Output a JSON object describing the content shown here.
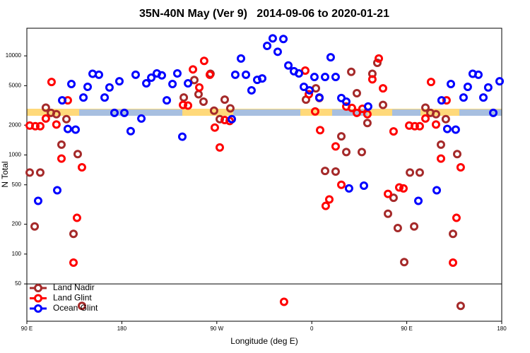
{
  "chart_data": {
    "type": "scatter",
    "title": "35N-40N May (Ver 9)   2014-09-06 to 2020-01-21",
    "xlabel": "Longitude (deg E)",
    "ylabel": "N Total",
    "xlim": [
      90,
      540
    ],
    "ylim": [
      21,
      19000
    ],
    "ylog": true,
    "legend": "lower left",
    "xticks": [
      {
        "value": 90,
        "label": "90 E"
      },
      180,
      {
        "value": 270,
        "label": "90 W"
      },
      {
        "value": 360,
        "label": "0"
      },
      {
        "value": 450,
        "label": "90 E"
      },
      {
        "value": 540,
        "label": "180"
      }
    ],
    "yticks": [
      50,
      100,
      200,
      500,
      1000,
      2000,
      5000,
      10000
    ],
    "series": [
      {
        "name": "Land Nadir",
        "color": "#a52a2a",
        "x": [
          92.7,
          97.4,
          102.7,
          108,
          112.8,
          118,
          122.8,
          127.5,
          134.2,
          138.2,
          142.2,
          238.7,
          248.7,
          252.7,
          257.4,
          267.4,
          277.5,
          282.8,
          272.8,
          264,
          354.5,
          363.9,
          367.2,
          372.6,
          382.6,
          388,
          392.7,
          397.4,
          402.7,
          407.4,
          412.7,
          417.4,
          422.1,
          427.5,
          432.2,
          437.5,
          441.5,
          447.6,
          453,
          457,
          462.3,
          467.7,
          472.4,
          477.7,
          482.4,
          487,
          493.8,
          497.8,
          501.1
        ],
        "values": [
          665,
          190,
          665,
          3000,
          2660,
          2580,
          1270,
          2300,
          160,
          1020,
          30,
          3800,
          5700,
          4100,
          3450,
          2800,
          3620,
          2950,
          2300,
          6600,
          3620,
          4700,
          3750,
          690,
          680,
          1540,
          1070,
          6900,
          4200,
          1070,
          2100,
          6600,
          8500,
          3200,
          255,
          370,
          183,
          83,
          665,
          190,
          665,
          3000,
          2660,
          2580,
          1270,
          2300,
          160,
          1020,
          30
        ]
      },
      {
        "name": "Land Glint",
        "color": "#ff0000",
        "x": [
          92.7,
          98,
          102.7,
          108,
          113.4,
          118,
          122.8,
          128.8,
          134.2,
          137.5,
          142.2,
          238,
          242.7,
          247.4,
          253.4,
          258,
          263.4,
          268.1,
          272.8,
          277.5,
          282.2,
          333.7,
          353.8,
          357.2,
          363.2,
          367.9,
          373.2,
          376.6,
          382.6,
          388,
          392.7,
          398,
          402.7,
          408,
          412.7,
          417.4,
          423.5,
          427.5,
          432.2,
          437.5,
          442.9,
          446.9,
          452.3,
          457.6,
          462.3,
          467.7,
          473,
          477.7,
          482.4,
          487.7,
          493.8,
          497.1,
          501.1
        ],
        "values": [
          1980,
          1950,
          1950,
          2330,
          5450,
          2030,
          920,
          3560,
          82,
          232,
          750,
          3200,
          3150,
          7300,
          4800,
          8900,
          6450,
          1890,
          1190,
          2250,
          2200,
          33,
          7100,
          4100,
          2750,
          1780,
          306,
          356,
          1220,
          500,
          3080,
          2980,
          2660,
          2920,
          2580,
          5800,
          9400,
          4700,
          405,
          1730,
          470,
          460,
          1980,
          1950,
          1950,
          2330,
          5450,
          2030,
          920,
          3560,
          82,
          232,
          750
        ]
      },
      {
        "name": "Ocean Glint",
        "color": "#0000ff",
        "x": [
          100.7,
          118.8,
          123.5,
          128.8,
          132.2,
          136.2,
          143.6,
          147.6,
          152.3,
          158.3,
          163.7,
          168.3,
          173,
          177.7,
          182.4,
          188.4,
          193.1,
          198.5,
          203.2,
          207.9,
          213.2,
          217.9,
          222.6,
          228,
          232.6,
          237.3,
          242.7,
          284.2,
          287.5,
          292.9,
          297.6,
          302.9,
          308.3,
          313,
          317.7,
          323,
          327.7,
          333.1,
          337.8,
          343.1,
          347.8,
          352.5,
          357.8,
          362.5,
          367.2,
          372.6,
          377.9,
          382.6,
          388,
          392.7,
          395.3,
          409.4,
          413.4,
          461,
          478.4,
          483,
          488.4,
          491.8,
          496.4,
          503.8,
          507.8,
          512.5,
          517.9,
          522.6,
          527.2,
          532,
          538
        ],
        "values": [
          344,
          440,
          3560,
          1830,
          5200,
          1800,
          3800,
          4870,
          6600,
          6450,
          3800,
          4800,
          2660,
          5540,
          2660,
          1740,
          6450,
          2330,
          5280,
          6030,
          6650,
          6350,
          3560,
          5200,
          6650,
          1530,
          5280,
          2300,
          6450,
          9400,
          6450,
          4490,
          5730,
          5920,
          12600,
          15000,
          11000,
          14800,
          8000,
          7000,
          6650,
          4870,
          4490,
          6120,
          3800,
          6120,
          9680,
          6120,
          3750,
          3450,
          460,
          490,
          3080,
          344,
          440,
          3560,
          1830,
          5200,
          1800,
          3800,
          4870,
          6600,
          6450,
          3800,
          4800,
          2660,
          5540
        ]
      }
    ]
  }
}
